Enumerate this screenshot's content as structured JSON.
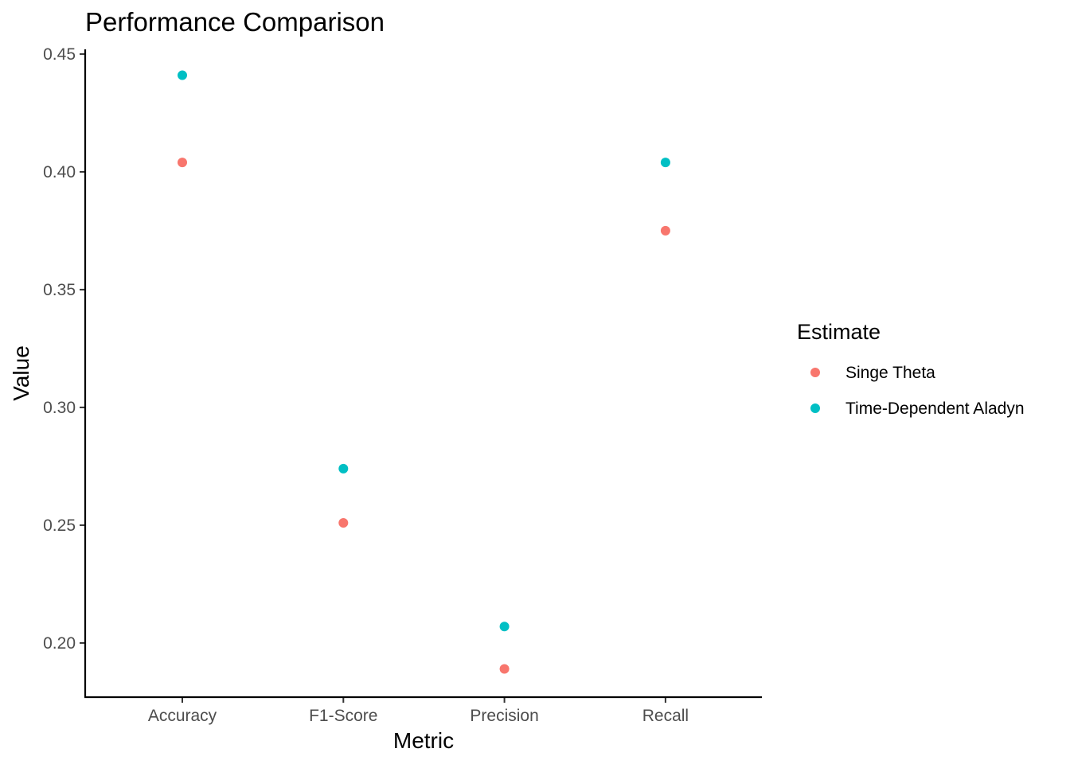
{
  "chart_data": {
    "type": "scatter",
    "title": "Performance Comparison",
    "xlabel": "Metric",
    "ylabel": "Value",
    "categories": [
      "Accuracy",
      "F1-Score",
      "Precision",
      "Recall"
    ],
    "ylim": [
      0.177,
      0.452
    ],
    "yticks": [
      "0.20",
      "0.25",
      "0.30",
      "0.35",
      "0.40",
      "0.45"
    ],
    "ytick_values": [
      0.2,
      0.25,
      0.3,
      0.35,
      0.4,
      0.45
    ],
    "grid": false,
    "legend": {
      "title": "Estimate",
      "position": "right"
    },
    "series": [
      {
        "name": "Singe Theta",
        "color": "#F8766D",
        "values": [
          0.404,
          0.251,
          0.189,
          0.375
        ]
      },
      {
        "name": "Time-Dependent Aladyn",
        "color": "#00BFC4",
        "values": [
          0.441,
          0.274,
          0.207,
          0.404
        ]
      }
    ]
  }
}
